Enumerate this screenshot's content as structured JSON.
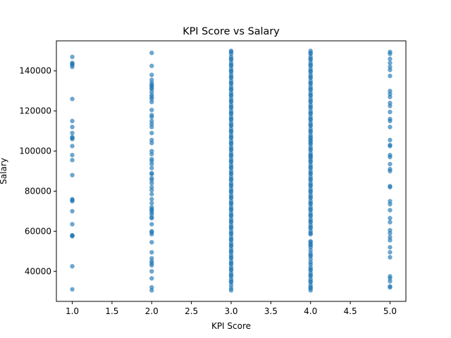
{
  "chart_data": {
    "type": "scatter",
    "title": "KPI Score vs Salary",
    "xlabel": "KPI Score",
    "ylabel": "Salary",
    "xlim": [
      0.8,
      5.2
    ],
    "ylim": [
      25000,
      155000
    ],
    "x_ticks": [
      1.0,
      1.5,
      2.0,
      2.5,
      3.0,
      3.5,
      4.0,
      4.5,
      5.0
    ],
    "x_tick_labels": [
      "1.0",
      "1.5",
      "2.0",
      "2.5",
      "3.0",
      "3.5",
      "4.0",
      "4.5",
      "5.0"
    ],
    "y_ticks": [
      40000,
      60000,
      80000,
      100000,
      120000,
      140000
    ],
    "y_tick_labels": [
      "40000",
      "60000",
      "80000",
      "100000",
      "120000",
      "140000"
    ],
    "grid": false,
    "legend": false,
    "marker_color": "#1f77b4",
    "marker_alpha": 0.65,
    "series": [
      {
        "x": [
          1,
          1,
          1,
          1,
          1,
          1,
          1,
          1,
          1,
          1,
          1,
          1,
          1,
          1,
          1,
          1,
          1,
          1,
          1,
          1,
          1,
          1,
          1,
          1,
          1,
          1
        ],
        "y": [
          147000,
          144000,
          143000,
          142000,
          126000,
          115000,
          112000,
          109000,
          107000,
          106500,
          102500,
          98000,
          95500,
          88000,
          76000,
          75000,
          70000,
          63500,
          58000,
          57500,
          42500,
          31000,
          57800,
          106000,
          143500,
          75500
        ]
      },
      {
        "x": [
          2,
          2,
          2,
          2,
          2,
          2,
          2,
          2,
          2,
          2,
          2,
          2,
          2,
          2,
          2,
          2,
          2,
          2,
          2,
          2,
          2,
          2,
          2,
          2,
          2,
          2,
          2,
          2,
          2,
          2,
          2,
          2,
          2,
          2,
          2,
          2,
          2,
          2,
          2,
          2,
          2,
          2,
          2,
          2,
          2,
          2,
          2,
          2,
          2,
          2,
          2,
          2,
          2,
          2,
          2,
          2,
          2,
          2,
          2,
          2
        ],
        "y": [
          149000,
          142500,
          138000,
          135500,
          134000,
          132500,
          131000,
          129500,
          128000,
          126000,
          124500,
          120500,
          118000,
          115000,
          112000,
          109000,
          105500,
          104000,
          100000,
          98500,
          96000,
          93500,
          91500,
          89000,
          88500,
          85500,
          84000,
          82000,
          80500,
          78500,
          76000,
          74000,
          72000,
          71000,
          69500,
          68500,
          66500,
          63500,
          60000,
          58500,
          54500,
          49500,
          46500,
          45000,
          44000,
          40000,
          36500,
          32000,
          30500,
          133000,
          127000,
          117000,
          113500,
          95000,
          86500,
          70500,
          67000,
          59500,
          43000,
          131500
        ]
      },
      {
        "x": [
          3,
          3,
          3,
          3,
          3,
          3,
          3,
          3,
          3,
          3,
          3,
          3,
          3,
          3,
          3,
          3,
          3,
          3,
          3,
          3,
          3,
          3,
          3,
          3,
          3,
          3,
          3,
          3,
          3,
          3,
          3,
          3,
          3,
          3,
          3,
          3,
          3,
          3,
          3,
          3,
          3,
          3,
          3,
          3,
          3,
          3,
          3,
          3,
          3,
          3,
          3,
          3,
          3,
          3,
          3,
          3,
          3,
          3,
          3,
          3,
          3,
          3,
          3,
          3,
          3,
          3,
          3,
          3,
          3,
          3,
          3,
          3,
          3,
          3,
          3,
          3,
          3,
          3,
          3,
          3,
          3,
          3,
          3,
          3,
          3,
          3,
          3,
          3,
          3,
          3,
          3,
          3,
          3,
          3,
          3,
          3,
          3,
          3,
          3,
          3,
          3,
          3,
          3,
          3,
          3,
          3,
          3,
          3,
          3,
          3,
          3,
          3,
          3,
          3,
          3,
          3,
          3,
          3,
          3,
          3
        ],
        "y": [
          150000,
          148500,
          147000,
          145500,
          144000,
          142500,
          141000,
          139500,
          138000,
          136500,
          135000,
          133500,
          132000,
          130500,
          129000,
          127500,
          126000,
          124500,
          123000,
          121500,
          120000,
          118500,
          117000,
          115500,
          114000,
          112500,
          111000,
          109500,
          108000,
          106500,
          105000,
          103500,
          102000,
          100500,
          99000,
          97500,
          96000,
          94500,
          93000,
          91500,
          90000,
          88500,
          87000,
          85500,
          84000,
          82500,
          81000,
          79500,
          78000,
          76500,
          75000,
          73500,
          72000,
          70500,
          69000,
          67500,
          66000,
          64500,
          63000,
          61500,
          60000,
          58500,
          57000,
          55500,
          54000,
          52500,
          51000,
          49500,
          48000,
          46500,
          45000,
          43500,
          42000,
          40500,
          39000,
          37500,
          36000,
          34500,
          33000,
          31500,
          30500,
          149500,
          146000,
          143000,
          140000,
          137000,
          134000,
          131000,
          128000,
          125000,
          122000,
          119000,
          116000,
          113000,
          110000,
          107000,
          104000,
          101000,
          98000,
          95000,
          92000,
          89000,
          86000,
          83000,
          80000,
          77000,
          74000,
          71000,
          68000,
          65000,
          62000,
          59000,
          56000,
          53000,
          50000,
          47000,
          44000,
          41000,
          38000,
          35000
        ]
      },
      {
        "x": [
          4,
          4,
          4,
          4,
          4,
          4,
          4,
          4,
          4,
          4,
          4,
          4,
          4,
          4,
          4,
          4,
          4,
          4,
          4,
          4,
          4,
          4,
          4,
          4,
          4,
          4,
          4,
          4,
          4,
          4,
          4,
          4,
          4,
          4,
          4,
          4,
          4,
          4,
          4,
          4,
          4,
          4,
          4,
          4,
          4,
          4,
          4,
          4,
          4,
          4,
          4,
          4,
          4,
          4,
          4,
          4,
          4,
          4,
          4,
          4,
          4,
          4,
          4,
          4,
          4,
          4,
          4,
          4,
          4,
          4,
          4,
          4,
          4,
          4,
          4,
          4,
          4,
          4,
          4,
          4,
          4,
          4,
          4,
          4,
          4,
          4,
          4,
          4,
          4,
          4,
          4,
          4,
          4,
          4,
          4,
          4,
          4,
          4,
          4,
          4,
          4,
          4,
          4,
          4,
          4,
          4,
          4,
          4,
          4,
          4,
          4,
          4,
          4,
          4,
          4,
          4,
          4,
          4,
          4,
          4
        ],
        "y": [
          150000,
          148500,
          147000,
          145500,
          144000,
          142500,
          141000,
          139500,
          138000,
          136500,
          135000,
          133500,
          132000,
          130500,
          129000,
          127500,
          126000,
          124500,
          123000,
          121500,
          120000,
          118500,
          117000,
          115500,
          114000,
          112500,
          111000,
          109500,
          108000,
          106500,
          105000,
          103500,
          102000,
          100500,
          99000,
          97500,
          96000,
          94500,
          93000,
          91500,
          90000,
          88500,
          87000,
          85500,
          84000,
          82500,
          81000,
          79500,
          78000,
          76500,
          75000,
          73500,
          72000,
          70500,
          69000,
          67500,
          66000,
          64500,
          63000,
          61500,
          60000,
          58500,
          54500,
          53500,
          52000,
          50500,
          49000,
          47500,
          43500,
          42000,
          40500,
          39000,
          37500,
          36000,
          34500,
          33000,
          31500,
          30500,
          149000,
          146000,
          143000,
          140000,
          137000,
          134000,
          131000,
          128000,
          125000,
          122000,
          119000,
          116000,
          113000,
          110000,
          107000,
          104000,
          101000,
          98000,
          95000,
          92000,
          89000,
          86000,
          83000,
          80000,
          77000,
          74000,
          71000,
          68000,
          65000,
          62000,
          59000,
          53000,
          48000,
          46000,
          44500,
          41000,
          38000,
          35000,
          32000,
          55000,
          105500,
          97000
        ]
      },
      {
        "x": [
          5,
          5,
          5,
          5,
          5,
          5,
          5,
          5,
          5,
          5,
          5,
          5,
          5,
          5,
          5,
          5,
          5,
          5,
          5,
          5,
          5,
          5,
          5,
          5,
          5,
          5,
          5,
          5,
          5,
          5,
          5,
          5,
          5,
          5,
          5,
          5,
          5,
          5,
          5,
          5,
          5,
          5,
          5
        ],
        "y": [
          149500,
          148500,
          146000,
          144000,
          142000,
          140500,
          137500,
          130000,
          128500,
          127000,
          124000,
          122500,
          119500,
          116000,
          115000,
          112000,
          105500,
          103000,
          98000,
          97000,
          93500,
          90000,
          82000,
          82500,
          75000,
          73500,
          70500,
          66500,
          64500,
          60500,
          59000,
          57000,
          55500,
          52000,
          49500,
          47000,
          37500,
          36500,
          35000,
          32500,
          32000,
          102500,
          91000
        ]
      }
    ]
  }
}
